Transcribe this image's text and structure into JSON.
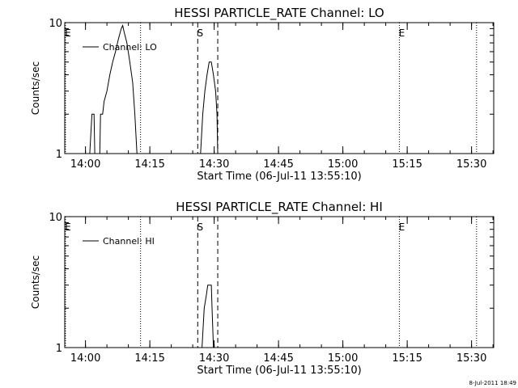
{
  "footer": {
    "timestamp": "8-Jul-2011 18:49"
  },
  "chart_data": [
    {
      "type": "line",
      "title": "HESSI PARTICLE_RATE Channel: LO",
      "xlabel": "Start Time (06-Jul-11 13:55:10)",
      "ylabel": "Counts/sec",
      "y_scale": "log",
      "ylim": [
        1,
        10
      ],
      "y_ticks": [
        {
          "value": 1,
          "label": "1"
        },
        {
          "value": 10,
          "label": "10"
        }
      ],
      "xlim": [
        "13:55:10",
        "15:35:10"
      ],
      "x_ticks": [
        {
          "value": "14:00",
          "label": "14:00"
        },
        {
          "value": "14:15",
          "label": "14:15"
        },
        {
          "value": "14:30",
          "label": "14:30"
        },
        {
          "value": "14:45",
          "label": "14:45"
        },
        {
          "value": "15:00",
          "label": "15:00"
        },
        {
          "value": "15:15",
          "label": "15:15"
        },
        {
          "value": "15:30",
          "label": "15:30"
        }
      ],
      "legend": {
        "placement": "top-left",
        "entries": [
          "Channel: LO"
        ]
      },
      "markers": [
        {
          "time": "13:55:20",
          "style": "dotted",
          "label": "E"
        },
        {
          "time": "14:12:50",
          "style": "dotted",
          "label": ""
        },
        {
          "time": "14:26:10",
          "style": "dashed",
          "label": "S"
        },
        {
          "time": "14:30:50",
          "style": "dashed",
          "label": ""
        },
        {
          "time": "15:13:10",
          "style": "dotted",
          "label": "E"
        },
        {
          "time": "15:31:10",
          "style": "dotted",
          "label": ""
        }
      ],
      "series": [
        {
          "name": "Channel: LO",
          "segments": [
            [
              [
                "14:01:00",
                1.0
              ],
              [
                "14:01:30",
                2.0
              ],
              [
                "14:02:00",
                2.0
              ],
              [
                "14:02:10",
                1.0
              ],
              [
                "14:03:20",
                1.0
              ],
              [
                "14:03:30",
                2.0
              ],
              [
                "14:04:00",
                2.0
              ],
              [
                "14:04:20",
                2.5
              ],
              [
                "14:05:00",
                3.0
              ],
              [
                "14:05:40",
                4.0
              ],
              [
                "14:06:20",
                5.0
              ],
              [
                "14:07:00",
                6.0
              ],
              [
                "14:07:40",
                7.5
              ],
              [
                "14:08:20",
                9.0
              ],
              [
                "14:08:40",
                9.5
              ],
              [
                "14:09:00",
                8.5
              ],
              [
                "14:09:40",
                7.0
              ],
              [
                "14:10:20",
                5.0
              ],
              [
                "14:11:00",
                3.5
              ],
              [
                "14:11:30",
                2.0
              ],
              [
                "14:12:00",
                1.0
              ]
            ],
            [
              [
                "14:26:50",
                1.0
              ],
              [
                "14:27:20",
                2.0
              ],
              [
                "14:27:50",
                3.0
              ],
              [
                "14:28:20",
                4.0
              ],
              [
                "14:28:50",
                5.0
              ],
              [
                "14:29:20",
                5.0
              ],
              [
                "14:29:50",
                4.0
              ],
              [
                "14:30:20",
                3.0
              ],
              [
                "14:30:40",
                2.0
              ],
              [
                "14:30:50",
                1.0
              ]
            ]
          ]
        }
      ]
    },
    {
      "type": "line",
      "title": "HESSI PARTICLE_RATE Channel: HI",
      "xlabel": "Start Time (06-Jul-11 13:55:10)",
      "ylabel": "Counts/sec",
      "y_scale": "log",
      "ylim": [
        1,
        10
      ],
      "y_ticks": [
        {
          "value": 1,
          "label": "1"
        },
        {
          "value": 10,
          "label": "10"
        }
      ],
      "xlim": [
        "13:55:10",
        "15:35:10"
      ],
      "x_ticks": [
        {
          "value": "14:00",
          "label": "14:00"
        },
        {
          "value": "14:15",
          "label": "14:15"
        },
        {
          "value": "14:30",
          "label": "14:30"
        },
        {
          "value": "14:45",
          "label": "14:45"
        },
        {
          "value": "15:00",
          "label": "15:00"
        },
        {
          "value": "15:15",
          "label": "15:15"
        },
        {
          "value": "15:30",
          "label": "15:30"
        }
      ],
      "legend": {
        "placement": "top-left",
        "entries": [
          "Channel: HI"
        ]
      },
      "markers": [
        {
          "time": "13:55:20",
          "style": "dotted",
          "label": "E"
        },
        {
          "time": "14:12:50",
          "style": "dotted",
          "label": ""
        },
        {
          "time": "14:26:10",
          "style": "dashed",
          "label": "S"
        },
        {
          "time": "14:30:50",
          "style": "dashed",
          "label": ""
        },
        {
          "time": "15:13:10",
          "style": "dotted",
          "label": "E"
        },
        {
          "time": "15:31:10",
          "style": "dotted",
          "label": ""
        }
      ],
      "series": [
        {
          "name": "Channel: HI",
          "segments": [
            [
              [
                "14:27:10",
                1.0
              ],
              [
                "14:27:40",
                2.0
              ],
              [
                "14:28:10",
                2.5
              ],
              [
                "14:28:30",
                3.0
              ],
              [
                "14:29:00",
                3.0
              ],
              [
                "14:29:20",
                3.0
              ],
              [
                "14:29:30",
                2.0
              ],
              [
                "14:29:50",
                1.0
              ]
            ]
          ]
        }
      ]
    }
  ]
}
